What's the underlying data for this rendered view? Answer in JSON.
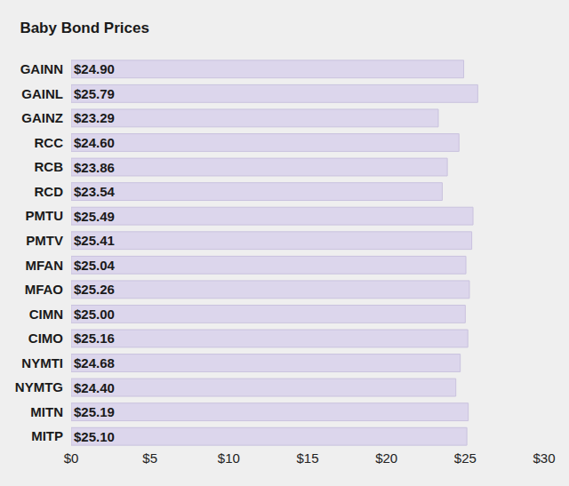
{
  "chart_data": {
    "type": "bar",
    "title": "Baby Bond Prices",
    "orientation": "horizontal",
    "categories": [
      "GAINN",
      "GAINL",
      "GAINZ",
      "RCC",
      "RCB",
      "RCD",
      "PMTU",
      "PMTV",
      "MFAN",
      "MFAO",
      "CIMN",
      "CIMO",
      "NYMTI",
      "NYMTG",
      "MITN",
      "MITP"
    ],
    "values": [
      24.9,
      25.79,
      23.29,
      24.6,
      23.86,
      23.54,
      25.49,
      25.41,
      25.04,
      25.26,
      25.0,
      25.16,
      24.68,
      24.4,
      25.19,
      25.1
    ],
    "value_labels": [
      "$24.90",
      "$25.79",
      "$23.29",
      "$24.60",
      "$23.86",
      "$23.54",
      "$25.49",
      "$25.41",
      "$25.04",
      "$25.26",
      "$25.00",
      "$25.16",
      "$24.68",
      "$24.40",
      "$25.19",
      "$25.10"
    ],
    "data_labels": true,
    "color": "#dcd6ec",
    "xlim": [
      0,
      30
    ],
    "xticks": [
      {
        "value": 0,
        "label": "$0"
      },
      {
        "value": 5,
        "label": "$5"
      },
      {
        "value": 10,
        "label": "$10"
      },
      {
        "value": 15,
        "label": "$15"
      },
      {
        "value": 20,
        "label": "$20"
      },
      {
        "value": 25,
        "label": "$25"
      },
      {
        "value": 30,
        "label": "$30"
      }
    ],
    "grid": false
  }
}
